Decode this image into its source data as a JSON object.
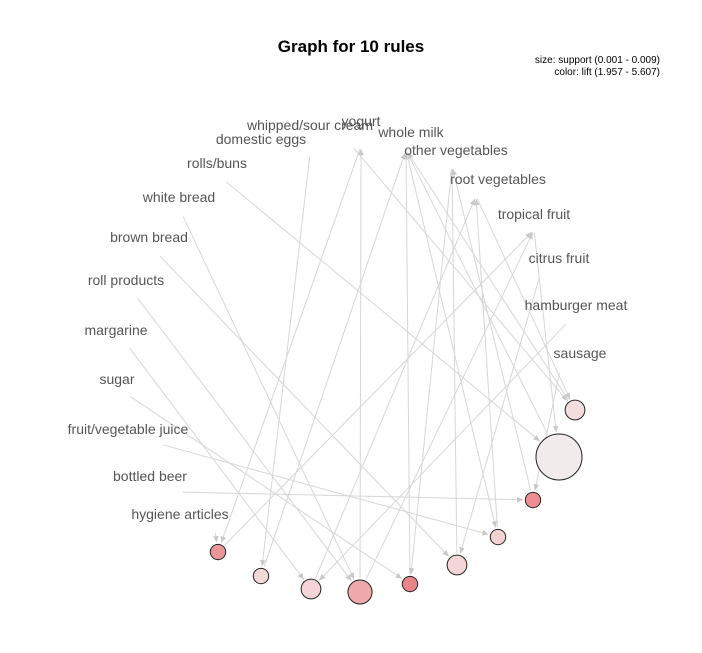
{
  "title": "Graph for 10 rules",
  "legend": {
    "size_text": "size: support (0.001 - 0.009)",
    "color_text": "color: lift (1.957 - 5.607)"
  },
  "colors": {
    "edge": "#d6d6d6",
    "node_stroke": "#222222",
    "label": "#555555"
  },
  "items": [
    {
      "id": "yogurt",
      "label": "yogurt"
    },
    {
      "id": "whipped_sour_cream",
      "label": "whipped/sour cream"
    },
    {
      "id": "whole_milk",
      "label": "whole milk"
    },
    {
      "id": "domestic_eggs",
      "label": "domestic eggs"
    },
    {
      "id": "other_vegetables",
      "label": "other vegetables"
    },
    {
      "id": "rolls_buns",
      "label": "rolls/buns"
    },
    {
      "id": "root_vegetables",
      "label": "root vegetables"
    },
    {
      "id": "white_bread",
      "label": "white bread"
    },
    {
      "id": "tropical_fruit",
      "label": "tropical fruit"
    },
    {
      "id": "brown_bread",
      "label": "brown bread"
    },
    {
      "id": "citrus_fruit",
      "label": "citrus fruit"
    },
    {
      "id": "roll_products",
      "label": "roll products"
    },
    {
      "id": "hamburger_meat",
      "label": "hamburger meat"
    },
    {
      "id": "margarine",
      "label": "margarine"
    },
    {
      "id": "sausage",
      "label": "sausage"
    },
    {
      "id": "sugar",
      "label": "sugar"
    },
    {
      "id": "fruit_vegetable_juice",
      "label": "fruit/vegetable juice"
    },
    {
      "id": "bottled_beer",
      "label": "bottled beer"
    },
    {
      "id": "hygiene_articles",
      "label": "hygiene articles"
    }
  ],
  "rules": [
    {
      "id": "r1",
      "support": 0.009,
      "lift": 1.957,
      "fill": "#f2ebeb"
    },
    {
      "id": "r2",
      "support": 0.002,
      "lift": 3.8,
      "fill": "#f6d2d2"
    },
    {
      "id": "r3",
      "support": 0.002,
      "lift": 5.4,
      "fill": "#ec8e92"
    },
    {
      "id": "r4",
      "support": 0.003,
      "lift": 3.4,
      "fill": "#f5d6d6"
    },
    {
      "id": "r5",
      "support": 0.003,
      "lift": 3.1,
      "fill": "#f3dddd"
    },
    {
      "id": "r6",
      "support": 0.002,
      "lift": 5.6,
      "fill": "#ea8488"
    },
    {
      "id": "r7",
      "support": 0.004,
      "lift": 4.6,
      "fill": "#f0a9ab"
    },
    {
      "id": "r8",
      "support": 0.003,
      "lift": 3.6,
      "fill": "#f4d4d4"
    },
    {
      "id": "r9",
      "support": 0.002,
      "lift": 3.3,
      "fill": "#f4d9d9"
    },
    {
      "id": "r10",
      "support": 0.002,
      "lift": 5.2,
      "fill": "#ec9599"
    }
  ],
  "edges": [
    [
      "whipped_sour_cream",
      "r5"
    ],
    [
      "r5",
      "whole_milk"
    ],
    [
      "domestic_eggs",
      "r9"
    ],
    [
      "r9",
      "whole_milk"
    ],
    [
      "rolls_buns",
      "r1"
    ],
    [
      "r1",
      "whole_milk"
    ],
    [
      "white_bread",
      "r7"
    ],
    [
      "r7",
      "yogurt"
    ],
    [
      "brown_bread",
      "r4"
    ],
    [
      "r4",
      "other_vegetables"
    ],
    [
      "roll_products",
      "r7"
    ],
    [
      "r7",
      "tropical_fruit"
    ],
    [
      "margarine",
      "r8"
    ],
    [
      "r8",
      "root_vegetables"
    ],
    [
      "sugar",
      "r6"
    ],
    [
      "r6",
      "whole_milk"
    ],
    [
      "fruit_vegetable_juice",
      "r2"
    ],
    [
      "r2",
      "root_vegetables"
    ],
    [
      "bottled_beer",
      "r3"
    ],
    [
      "r3",
      "other_vegetables"
    ],
    [
      "hygiene_articles",
      "r10"
    ],
    [
      "r10",
      "tropical_fruit"
    ],
    [
      "citrus_fruit",
      "r4"
    ],
    [
      "tropical_fruit",
      "r1"
    ],
    [
      "hamburger_meat",
      "r8"
    ],
    [
      "sausage",
      "r3"
    ],
    [
      "other_vegetables",
      "r6"
    ],
    [
      "whole_milk",
      "r2"
    ],
    [
      "yogurt",
      "r10"
    ],
    [
      "root_vegetables",
      "r5"
    ]
  ]
}
